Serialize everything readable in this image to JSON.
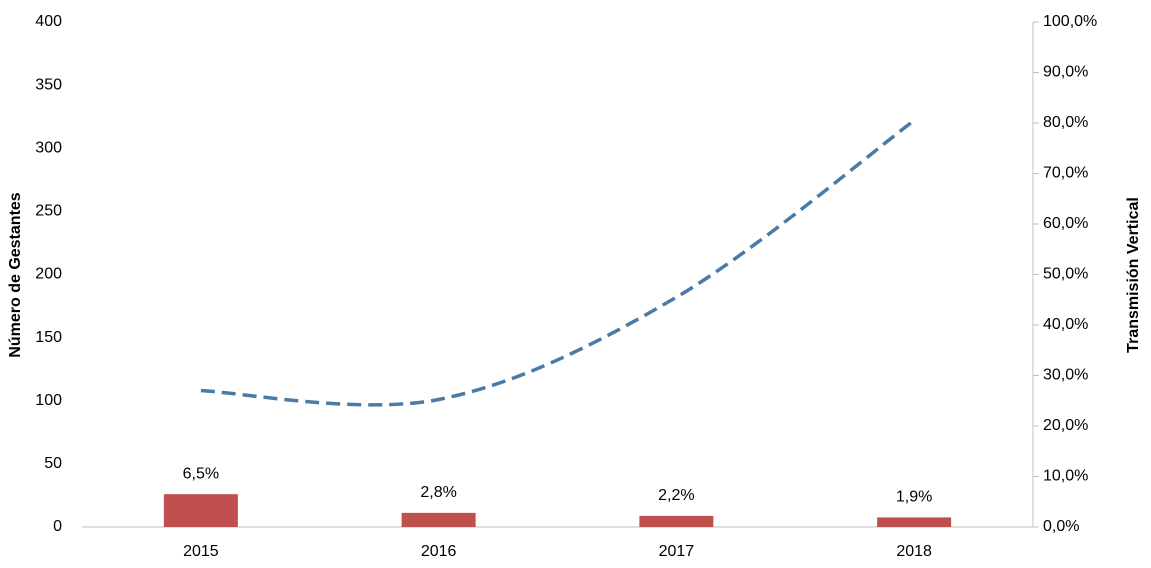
{
  "chart_data": {
    "type": "bar-line",
    "categories": [
      "2015",
      "2016",
      "2017",
      "2018"
    ],
    "ylabel": "Número de Gestantes",
    "y2label": "Transmisión Vertical",
    "ylim": [
      0,
      400
    ],
    "yticks": [
      0,
      50,
      100,
      150,
      200,
      250,
      300,
      350,
      400
    ],
    "y2lim": [
      0,
      100
    ],
    "y2ticks": [
      {
        "value": 0,
        "label": "0,0%"
      },
      {
        "value": 10,
        "label": "10,0%"
      },
      {
        "value": 20,
        "label": "20,0%"
      },
      {
        "value": 30,
        "label": "30,0%"
      },
      {
        "value": 40,
        "label": "40,0%"
      },
      {
        "value": 50,
        "label": "50,0%"
      },
      {
        "value": 60,
        "label": "60,0%"
      },
      {
        "value": 70,
        "label": "70,0%"
      },
      {
        "value": 80,
        "label": "80,0%"
      },
      {
        "value": 90,
        "label": "90,0%"
      },
      {
        "value": 100,
        "label": "100,0%"
      }
    ],
    "series": [
      {
        "type": "bar",
        "axis": "y2",
        "color": "#c0504d",
        "values": [
          6.5,
          2.8,
          2.2,
          1.9
        ],
        "value_labels": [
          "6,5%",
          "2,8%",
          "2,2%",
          "1,9%"
        ]
      },
      {
        "type": "line",
        "axis": "y",
        "color": "#4a7ba7",
        "dashed": true,
        "smooth": true,
        "values": [
          108,
          101,
          182,
          322
        ]
      }
    ],
    "grid": false
  }
}
